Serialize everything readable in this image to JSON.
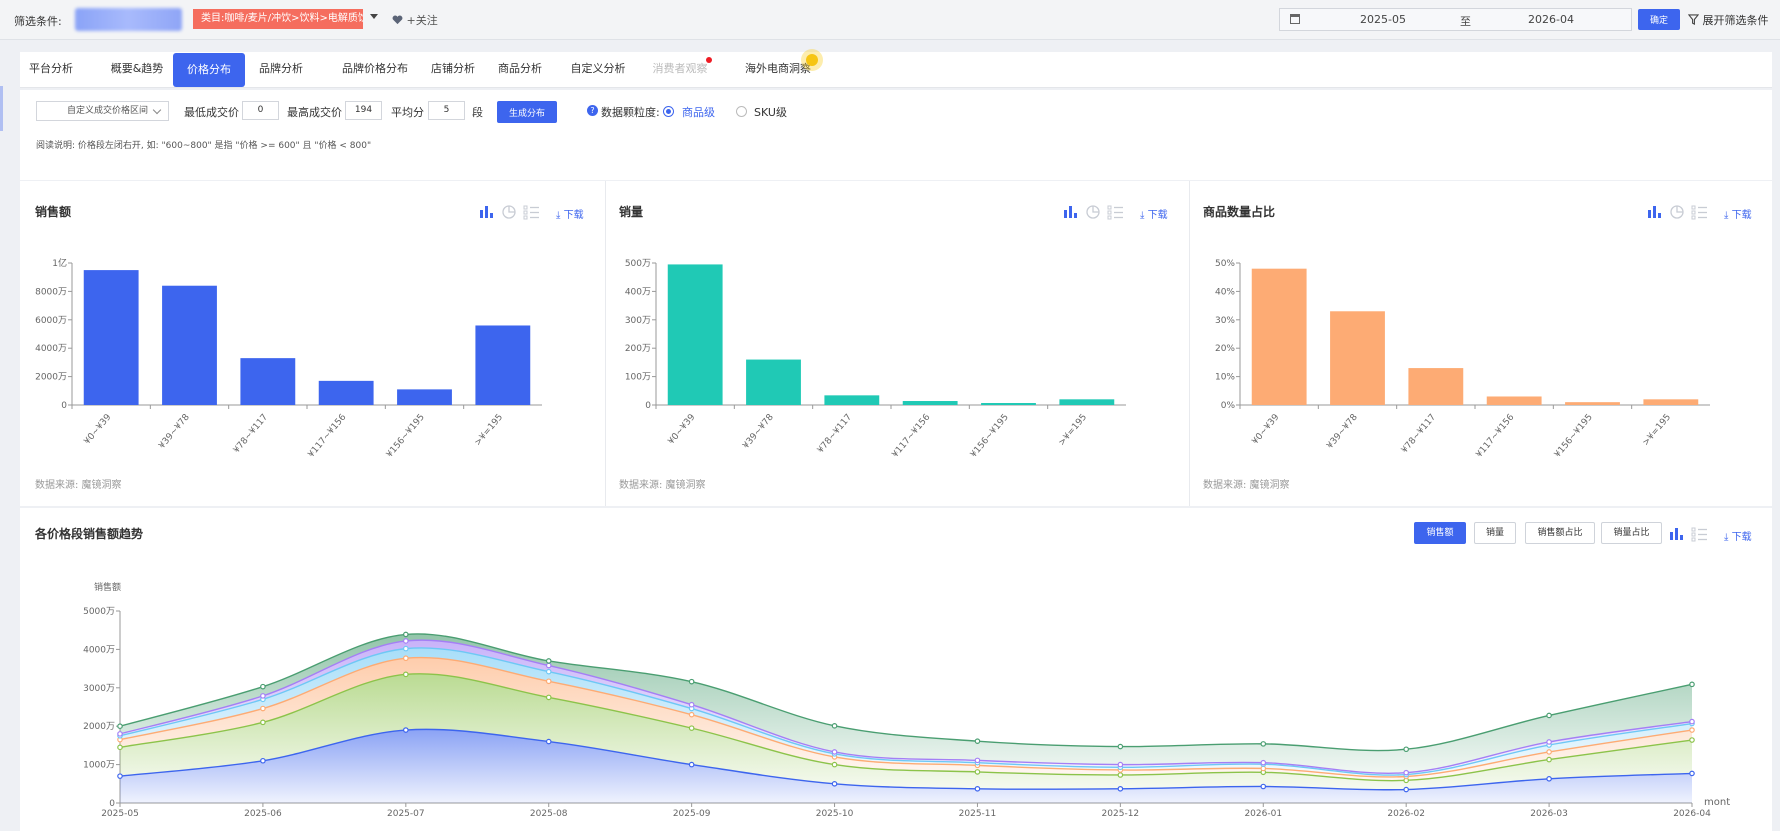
{
  "topbar": {
    "filter_label": "筛选条件:",
    "category_tag": "类目:咖啡/麦片/冲饮>饮料>电解质饮料",
    "follow_label": "+关注",
    "date_start": "2025-05",
    "date_sep": "至",
    "date_end": "2026-04",
    "confirm_label": "确定",
    "expand_label": "展开筛选条件"
  },
  "tabs": [
    {
      "label": "平台分析"
    },
    {
      "label": "概要&趋势"
    },
    {
      "label": "价格分布",
      "active": true
    },
    {
      "label": "品牌分析"
    },
    {
      "label": "品牌价格分布"
    },
    {
      "label": "店铺分析"
    },
    {
      "label": "商品分析"
    },
    {
      "label": "自定义分析"
    },
    {
      "label": "消费者观察",
      "muted": true
    },
    {
      "label": "海外电商洞察"
    }
  ],
  "controls": {
    "range_select": "自定义成交价格区间",
    "min_label": "最低成交价",
    "min_value": "0",
    "max_label": "最高成交价",
    "max_value": "194",
    "avg_label": "平均分",
    "avg_value": "5",
    "seg_unit": "段",
    "generate_label": "生成分布",
    "granularity_label": "数据颗粒度:",
    "opt_product": "商品级",
    "opt_sku": "SKU级",
    "note": "阅读说明: 价格段左闭右开, 如: \"600~800\" 是指 \"价格 >= 600\" 且 \"价格 < 800\""
  },
  "cards": {
    "download_label": "下载",
    "source": "数据来源: 魔镜洞察",
    "sales": {
      "title": "销售额"
    },
    "volume": {
      "title": "销量"
    },
    "count": {
      "title": "商品数量占比"
    }
  },
  "trend": {
    "title": "各价格段销售额趋势",
    "buttons": [
      "销售额",
      "销量",
      "销售额占比",
      "销量占比"
    ],
    "ylabel": "销售额",
    "xlabel": "month"
  },
  "colors": {
    "accent": "#3d65ee",
    "bar_sales": "#3d65ee",
    "bar_volume": "#20c9b5",
    "bar_count": "#fdab74"
  },
  "chart_data": [
    {
      "type": "bar",
      "title": "销售额",
      "categories": [
        "¥0~¥39",
        "¥39~¥78",
        "¥78~¥117",
        "¥117~¥156",
        "¥156~¥195",
        ">¥=195"
      ],
      "values": [
        95000000,
        84000000,
        33000000,
        17000000,
        11000000,
        56000000
      ],
      "ylim": [
        0,
        100000000
      ],
      "yticks": [
        "0",
        "2000万",
        "4000万",
        "6000万",
        "8000万",
        "1亿"
      ]
    },
    {
      "type": "bar",
      "title": "销量",
      "categories": [
        "¥0~¥39",
        "¥39~¥78",
        "¥78~¥117",
        "¥117~¥156",
        "¥156~¥195",
        ">¥=195"
      ],
      "values": [
        4950000,
        1600000,
        340000,
        140000,
        70000,
        200000
      ],
      "ylim": [
        0,
        5000000
      ],
      "yticks": [
        "0",
        "100万",
        "200万",
        "300万",
        "400万",
        "500万"
      ]
    },
    {
      "type": "bar",
      "title": "商品数量占比",
      "categories": [
        "¥0~¥39",
        "¥39~¥78",
        "¥78~¥117",
        "¥117~¥156",
        "¥156~¥195",
        ">¥=195"
      ],
      "values": [
        48,
        33,
        13,
        3,
        1,
        2
      ],
      "ylim": [
        0,
        50
      ],
      "yticks": [
        "0%",
        "10%",
        "20%",
        "30%",
        "40%",
        "50%"
      ]
    },
    {
      "type": "area",
      "title": "各价格段销售额趋势",
      "ylabel": "销售额",
      "xlabel": "month",
      "x": [
        "2025-05",
        "2025-06",
        "2025-07",
        "2025-08",
        "2025-09",
        "2025-10",
        "2025-11",
        "2025-12",
        "2026-01",
        "2026-02",
        "2026-03",
        "2026-04"
      ],
      "ylim": [
        0,
        50000000
      ],
      "yticks": [
        "0",
        "1000万",
        "2000万",
        "3000万",
        "4000万",
        "5000万"
      ],
      "stacked": true,
      "series": [
        {
          "color": "#3d65ee",
          "values": [
            7000000,
            11000000,
            19000000,
            16000000,
            10000000,
            5000000,
            3700000,
            3700000,
            4300000,
            3500000,
            6300000,
            7700000
          ]
        },
        {
          "color": "#8cc34a",
          "values": [
            7500000,
            10000000,
            14500000,
            11500000,
            9500000,
            5000000,
            4400000,
            3600000,
            3700000,
            2400000,
            5000000,
            8700000
          ]
        },
        {
          "color": "#fdab74",
          "values": [
            2000000,
            3600000,
            4200000,
            4200000,
            3500000,
            2000000,
            1700000,
            1300000,
            1000000,
            1000000,
            2000000,
            2600000
          ]
        },
        {
          "color": "#6ec8f5",
          "values": [
            1000000,
            2400000,
            2500000,
            2500000,
            1600000,
            800000,
            700000,
            700000,
            1100000,
            500000,
            1800000,
            1700000
          ]
        },
        {
          "color": "#a47ff5",
          "values": [
            500000,
            900000,
            2000000,
            1600000,
            1000000,
            500000,
            600000,
            700000,
            400000,
            500000,
            800000,
            500000
          ]
        },
        {
          "color": "#4a9e71",
          "values": [
            2000000,
            2400000,
            1700000,
            1200000,
            6000000,
            6800000,
            5000000,
            4700000,
            4900000,
            6100000,
            6900000,
            9700000
          ]
        }
      ]
    }
  ]
}
